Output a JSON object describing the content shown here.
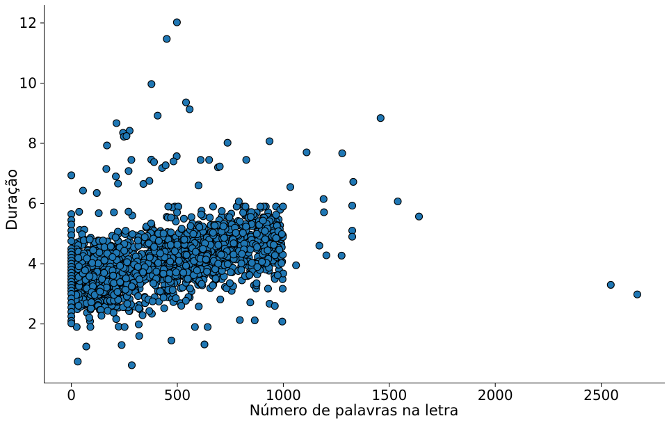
{
  "chart_data": {
    "type": "scatter",
    "title": "",
    "xlabel": "Número de palavras na letra",
    "ylabel": "Duração",
    "xlim": [
      -130,
      2800
    ],
    "ylim": [
      0.05,
      12.6
    ],
    "x_ticks": [
      0,
      500,
      1000,
      1500,
      2000,
      2500
    ],
    "y_ticks": [
      2,
      4,
      6,
      8,
      10,
      12
    ],
    "grid": false,
    "legend": "none",
    "marker_color": "#1f77b4",
    "marker_edge": "#000000",
    "series": [
      {
        "outliers_and_sparse": [
          [
            498,
            12.02
          ],
          [
            450,
            11.47
          ],
          [
            378,
            9.97
          ],
          [
            541,
            9.36
          ],
          [
            558,
            9.13
          ],
          [
            407,
            8.92
          ],
          [
            1459,
            8.84
          ],
          [
            213,
            8.67
          ],
          [
            244,
            8.35
          ],
          [
            275,
            8.42
          ],
          [
            248,
            8.22
          ],
          [
            260,
            8.24
          ],
          [
            168,
            7.93
          ],
          [
            737,
            8.02
          ],
          [
            935,
            8.07
          ],
          [
            1110,
            7.7
          ],
          [
            1278,
            7.67
          ],
          [
            497,
            7.57
          ],
          [
            377,
            7.46
          ],
          [
            283,
            7.45
          ],
          [
            610,
            7.45
          ],
          [
            650,
            7.45
          ],
          [
            825,
            7.45
          ],
          [
            390,
            7.38
          ],
          [
            428,
            7.18
          ],
          [
            445,
            7.27
          ],
          [
            482,
            7.4
          ],
          [
            692,
            7.2
          ],
          [
            700,
            7.23
          ],
          [
            165,
            7.15
          ],
          [
            270,
            7.08
          ],
          [
            0,
            6.94
          ],
          [
            210,
            6.9
          ],
          [
            220,
            6.66
          ],
          [
            340,
            6.65
          ],
          [
            368,
            6.75
          ],
          [
            600,
            6.6
          ],
          [
            1330,
            6.72
          ],
          [
            1033,
            6.55
          ],
          [
            120,
            6.35
          ],
          [
            55,
            6.43
          ],
          [
            790,
            6.07
          ],
          [
            1540,
            6.07
          ],
          [
            1190,
            6.15
          ],
          [
            1325,
            5.93
          ],
          [
            1192,
            5.71
          ],
          [
            1640,
            5.57
          ],
          [
            1325,
            5.1
          ],
          [
            1325,
            4.9
          ],
          [
            1203,
            4.28
          ],
          [
            1275,
            4.27
          ],
          [
            1170,
            4.6
          ],
          [
            1060,
            3.95
          ],
          [
            997,
            3.17
          ],
          [
            995,
            2.08
          ],
          [
            935,
            2.67
          ],
          [
            960,
            2.6
          ],
          [
            865,
            2.12
          ],
          [
            795,
            2.13
          ],
          [
            30,
            0.75
          ],
          [
            70,
            1.25
          ],
          [
            285,
            0.63
          ],
          [
            237,
            1.3
          ],
          [
            472,
            1.45
          ],
          [
            628,
            1.32
          ],
          [
            320,
            1.6
          ],
          [
            2545,
            3.3
          ],
          [
            2670,
            2.98
          ]
        ],
        "zero_word_column": [
          [
            0,
            5.65
          ],
          [
            0,
            5.45
          ],
          [
            0,
            5.3
          ],
          [
            0,
            5.1
          ],
          [
            0,
            4.95
          ],
          [
            0,
            4.75
          ],
          [
            0,
            4.5
          ],
          [
            0,
            4.4
          ],
          [
            0,
            4.3
          ],
          [
            0,
            4.2
          ],
          [
            0,
            4.1
          ],
          [
            0,
            4.0
          ],
          [
            0,
            3.9
          ],
          [
            0,
            3.8
          ],
          [
            0,
            3.7
          ],
          [
            0,
            3.6
          ],
          [
            0,
            3.5
          ],
          [
            0,
            3.4
          ],
          [
            0,
            3.3
          ],
          [
            0,
            3.2
          ],
          [
            0,
            3.1
          ],
          [
            0,
            3.0
          ],
          [
            0,
            2.85
          ],
          [
            0,
            2.7
          ],
          [
            0,
            2.55
          ],
          [
            0,
            2.4
          ],
          [
            0,
            2.25
          ],
          [
            0,
            2.1
          ],
          [
            0,
            2.02
          ]
        ],
        "dense_cluster": {
          "x_range": [
            20,
            1000
          ],
          "y_range": [
            1.9,
            5.9
          ],
          "center_y_trend": [
            [
              50,
              3.6
            ],
            [
              300,
              3.9
            ],
            [
              600,
              4.3
            ],
            [
              900,
              4.8
            ]
          ]
        }
      }
    ]
  }
}
